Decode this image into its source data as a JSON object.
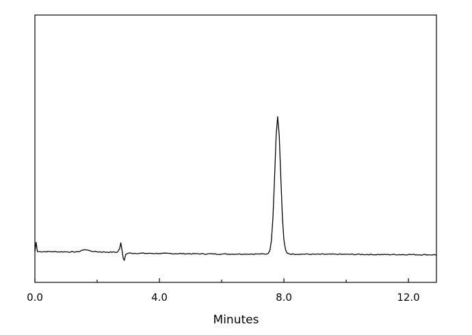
{
  "chart_data": {
    "type": "line",
    "title": "",
    "xlabel": "Minutes",
    "ylabel": "",
    "xlim": [
      0,
      12.9
    ],
    "ylim": [
      0,
      100
    ],
    "y_units": "arbitrary (no y tick labels shown)",
    "grid": false,
    "legend": "none",
    "x_major_ticks": [
      0,
      4,
      8,
      12
    ],
    "x_tick_labels": [
      "0.0",
      "4.0",
      "8.0",
      "12.0"
    ],
    "x_minor_ticks": [
      2,
      6,
      10
    ],
    "line_color": "#000000",
    "series": [
      {
        "points": [
          [
            0.0,
            11.6
          ],
          [
            0.04,
            15.0
          ],
          [
            0.08,
            11.5
          ],
          [
            0.5,
            11.5
          ],
          [
            1.0,
            11.4
          ],
          [
            1.4,
            11.4
          ],
          [
            1.5,
            12.0
          ],
          [
            1.6,
            12.2
          ],
          [
            1.75,
            11.9
          ],
          [
            1.9,
            11.5
          ],
          [
            2.3,
            11.3
          ],
          [
            2.65,
            11.3
          ],
          [
            2.72,
            12.5
          ],
          [
            2.76,
            14.8
          ],
          [
            2.8,
            12.0
          ],
          [
            2.84,
            9.0
          ],
          [
            2.87,
            8.2
          ],
          [
            2.92,
            10.5
          ],
          [
            3.0,
            10.9
          ],
          [
            4.0,
            10.8
          ],
          [
            5.0,
            10.7
          ],
          [
            6.0,
            10.6
          ],
          [
            7.0,
            10.6
          ],
          [
            7.45,
            10.6
          ],
          [
            7.5,
            10.9
          ],
          [
            7.55,
            12.0
          ],
          [
            7.6,
            15.7
          ],
          [
            7.65,
            24.6
          ],
          [
            7.7,
            39.4
          ],
          [
            7.75,
            55.0
          ],
          [
            7.8,
            62.0
          ],
          [
            7.85,
            55.0
          ],
          [
            7.9,
            39.4
          ],
          [
            7.95,
            24.6
          ],
          [
            8.0,
            15.9
          ],
          [
            8.05,
            12.3
          ],
          [
            8.1,
            11.0
          ],
          [
            8.2,
            10.6
          ],
          [
            9.0,
            10.5
          ],
          [
            10.0,
            10.5
          ],
          [
            11.0,
            10.4
          ],
          [
            12.0,
            10.4
          ],
          [
            12.9,
            10.3
          ]
        ]
      }
    ]
  }
}
